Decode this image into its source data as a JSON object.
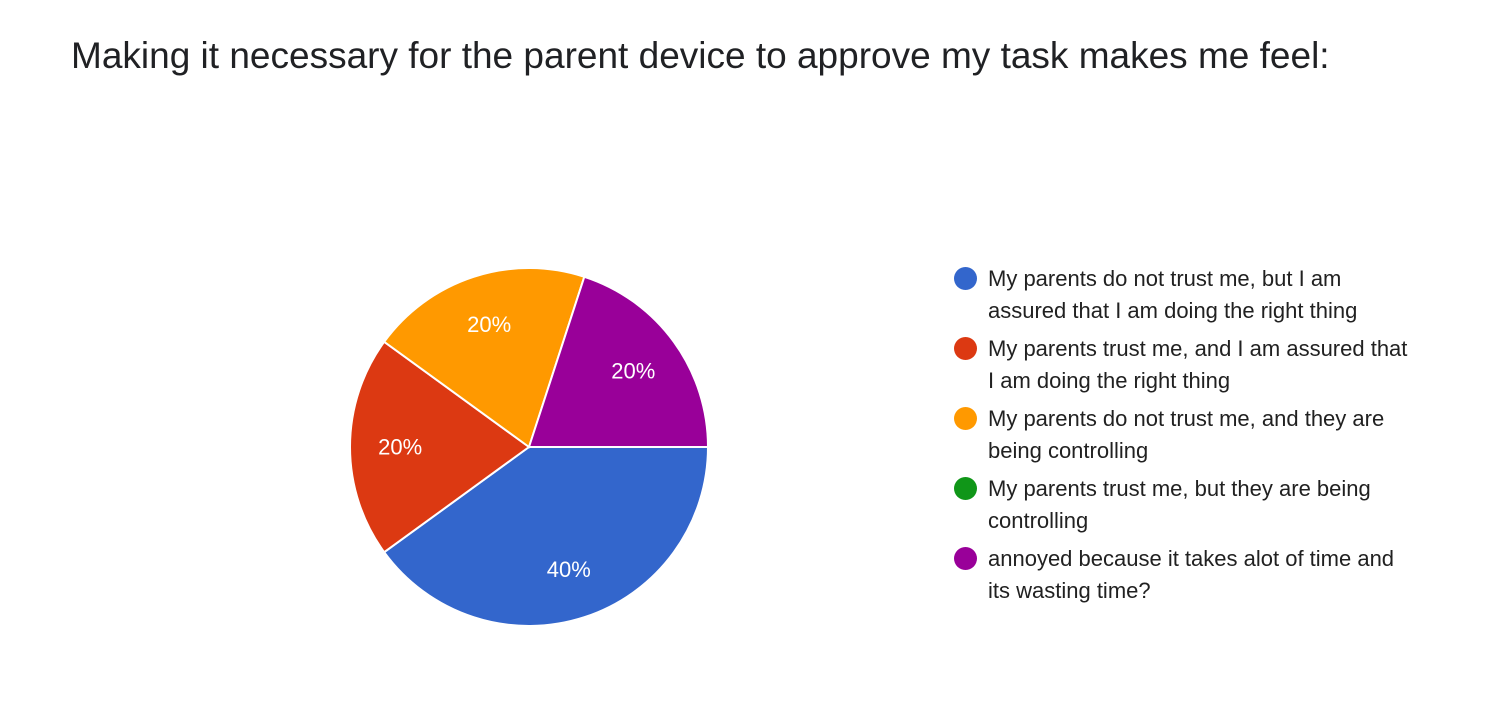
{
  "title": "Making it necessary for the parent device to approve my task makes me feel:",
  "chart_data": {
    "type": "pie",
    "title": "Making it necessary for the parent device to approve my task makes me feel:",
    "legend_position": "right",
    "slices": [
      {
        "label": "My parents do not trust me, but I am assured that I am doing the right thing",
        "value": 40,
        "display": "40%",
        "color": "#3366cc"
      },
      {
        "label": "My parents trust me, and I am assured that I am doing the right thing",
        "value": 20,
        "display": "20%",
        "color": "#dc3912"
      },
      {
        "label": "My parents do not trust me, and they are being controlling",
        "value": 20,
        "display": "20%",
        "color": "#ff9900"
      },
      {
        "label": "My parents trust me, but they are being controlling",
        "value": 0,
        "display": "0%",
        "color": "#109618"
      },
      {
        "label": "annoyed because it takes alot of time and its wasting time?",
        "value": 20,
        "display": "20%",
        "color": "#990099"
      }
    ]
  }
}
